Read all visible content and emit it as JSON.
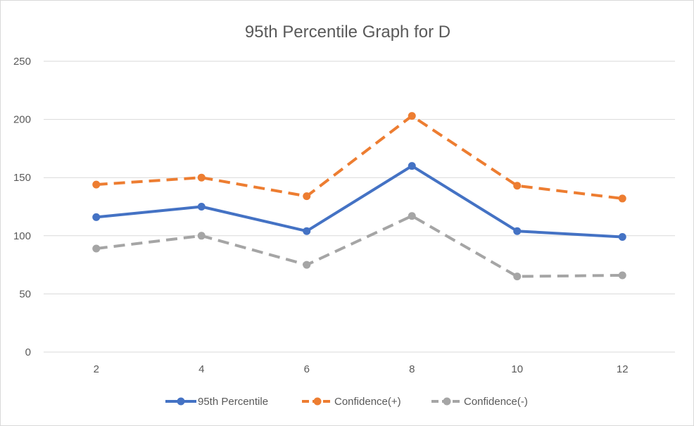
{
  "chart_data": {
    "type": "line",
    "title": "95th Percentile Graph for D",
    "xlabel": "",
    "ylabel": "",
    "categories": [
      "2",
      "4",
      "6",
      "8",
      "10",
      "12"
    ],
    "ylim": [
      0,
      250
    ],
    "yticks": [
      "0",
      "50",
      "100",
      "150",
      "200",
      "250"
    ],
    "grid": true,
    "legend": "bottom",
    "series": [
      {
        "name": "95th Percentile",
        "values": [
          116,
          125,
          104,
          160,
          104,
          99
        ],
        "color": "#4472c4",
        "dashed": false
      },
      {
        "name": "Confidence(+)",
        "values": [
          144,
          150,
          134,
          203,
          143,
          132
        ],
        "color": "#ed7d31",
        "dashed": true
      },
      {
        "name": "Confidence(-)",
        "values": [
          89,
          100,
          75,
          117,
          65,
          66
        ],
        "color": "#a5a5a5",
        "dashed": true
      }
    ]
  }
}
